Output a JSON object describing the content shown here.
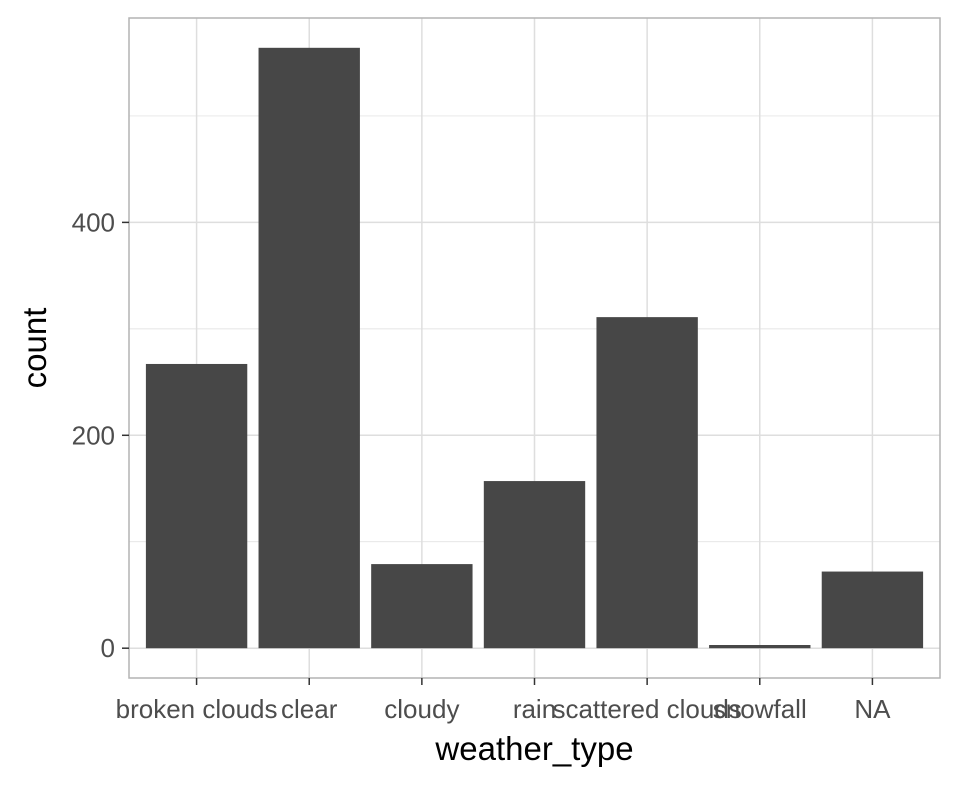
{
  "chart_data": {
    "type": "bar",
    "title": "",
    "xlabel": "weather_type",
    "ylabel": "count",
    "categories": [
      "broken clouds",
      "clear",
      "cloudy",
      "rain",
      "scattered clouds",
      "snowfall",
      "NA"
    ],
    "values": [
      267,
      564,
      79,
      157,
      311,
      3,
      72
    ],
    "ylim": [
      -28,
      592
    ],
    "yticks": [
      0,
      200,
      400
    ],
    "ytick_labels": [
      "0",
      "200",
      "400"
    ],
    "grid": true,
    "legend": "none",
    "colors": {
      "bar": "#474747",
      "grid": "#dedede",
      "panel_border": "#b3b3b3",
      "tick_text": "#4d4d4d",
      "axis_title": "#000000",
      "background": "#ffffff"
    }
  }
}
